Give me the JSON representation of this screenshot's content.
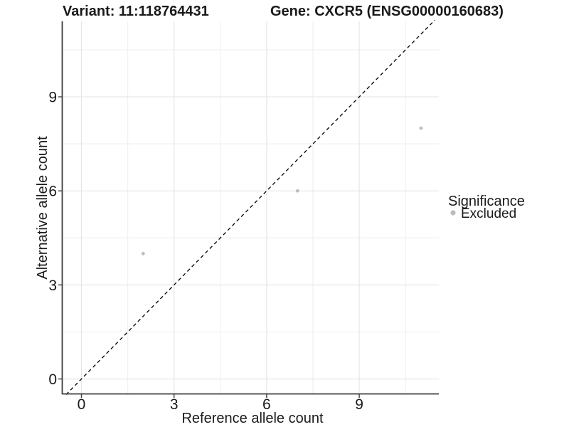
{
  "chart_data": {
    "type": "scatter",
    "title_left": "Variant: 11:118764431",
    "title_right": "Gene: CXCR5 (ENSG00000160683)",
    "xlabel": "Reference allele count",
    "ylabel": "Alternative allele count",
    "xlim": [
      -0.55,
      11.6
    ],
    "ylim": [
      -0.5,
      11.45
    ],
    "x_major_ticks": [
      0,
      3,
      6,
      9
    ],
    "y_major_ticks": [
      0,
      3,
      6,
      9
    ],
    "x_minor_ticks": [
      1.5,
      4.5,
      7.5,
      10.5
    ],
    "y_minor_ticks": [
      1.5,
      4.5,
      7.5,
      10.5
    ],
    "grid": true,
    "identity_line": {
      "style": "dashed",
      "color": "#000000",
      "equation": "y = x"
    },
    "series": [
      {
        "name": "Excluded",
        "color": "#bdbdbd",
        "points": [
          {
            "x": 2,
            "y": 4
          },
          {
            "x": 7,
            "y": 6
          },
          {
            "x": 11,
            "y": 8
          }
        ]
      }
    ],
    "legend": {
      "title": "Significance",
      "position": "right",
      "items": [
        {
          "label": "Excluded",
          "color": "#bdbdbd"
        }
      ]
    },
    "style": {
      "background": "#ffffff",
      "axis_color": "#3c3c3c",
      "tick_color": "#3c3c3c",
      "grid_major_color": "#e6e6e6",
      "grid_minor_color": "#f1f1f1",
      "text_color": "#1a1a1a"
    }
  }
}
